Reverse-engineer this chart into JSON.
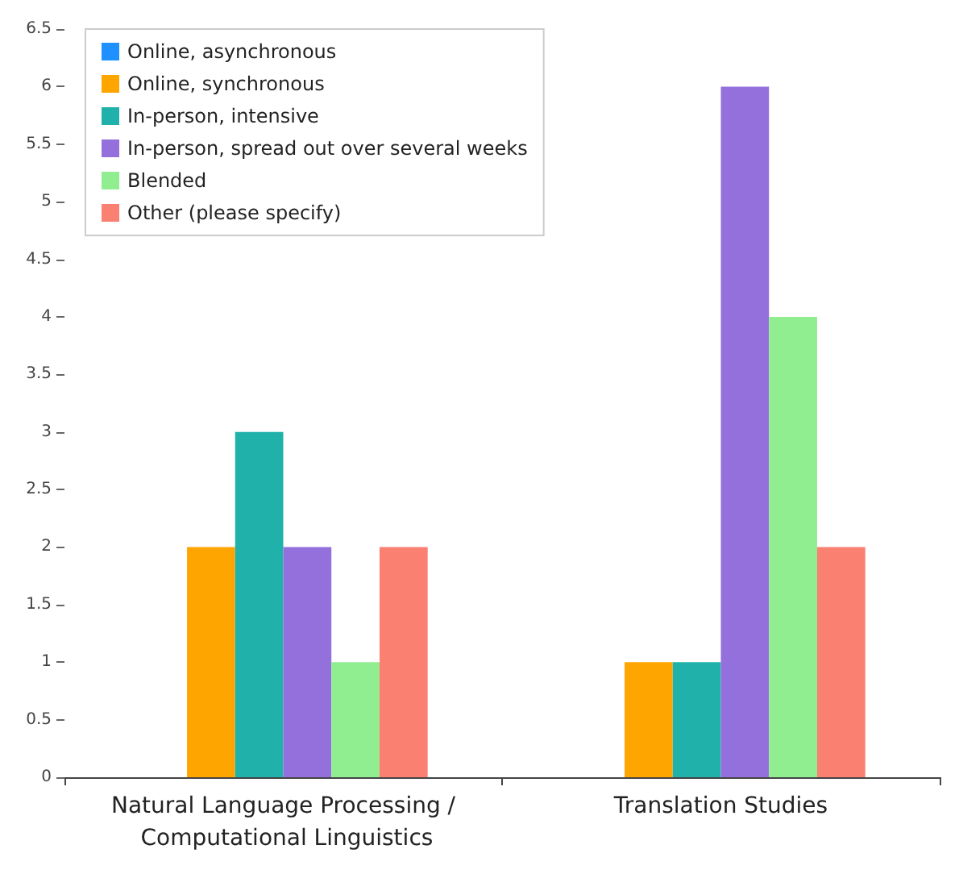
{
  "chart_data": {
    "type": "bar",
    "categories": [
      "Natural Language Processing / Computational Linguistics",
      "Translation Studies"
    ],
    "series": [
      {
        "name": "Online, asynchronous",
        "color": "#1e90ff",
        "values": [
          0,
          0
        ]
      },
      {
        "name": "Online, synchronous",
        "color": "#ffa500",
        "values": [
          2,
          1
        ]
      },
      {
        "name": "In-person, intensive",
        "color": "#20b2aa",
        "values": [
          3,
          1
        ]
      },
      {
        "name": "In-person, spread out over several weeks",
        "color": "#9370db",
        "values": [
          2,
          6
        ]
      },
      {
        "name": "Blended",
        "color": "#90ee90",
        "values": [
          1,
          4
        ]
      },
      {
        "name": "Other (please specify)",
        "color": "#fa8072",
        "values": [
          2,
          2
        ]
      }
    ],
    "ylim": [
      0,
      6.5
    ],
    "yticks": [
      0,
      0.5,
      1,
      1.5,
      2,
      2.5,
      3,
      3.5,
      4,
      4.5,
      5,
      5.5,
      6,
      6.5
    ],
    "grid": false,
    "legend": "top left"
  }
}
